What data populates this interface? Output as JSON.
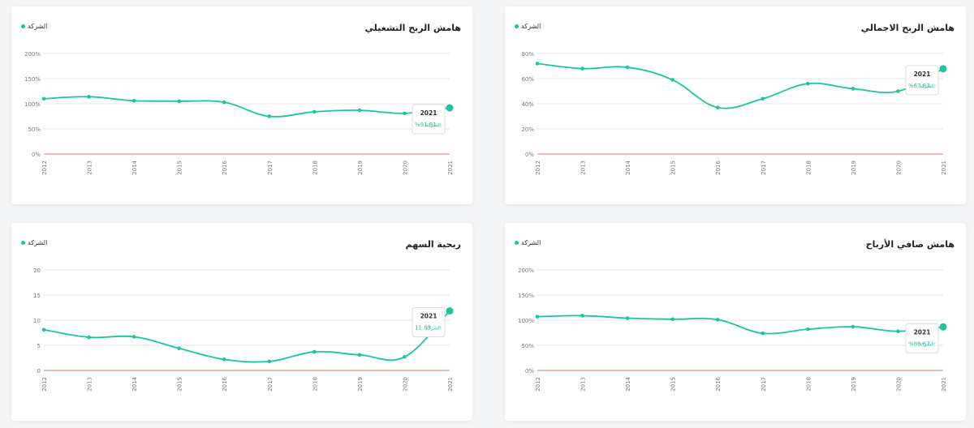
{
  "series_color": "#1bc5a0",
  "zero_line_color": "#e57373",
  "tooltip_series_label": "الشركة:",
  "chart_data": [
    {
      "id": "gross_margin",
      "type": "line",
      "title": "هامش الربح الاجمالي",
      "legend": "الشركة",
      "x": [
        "2012",
        "2013",
        "2014",
        "2015",
        "2016",
        "2017",
        "2018",
        "2019",
        "2020",
        "2021"
      ],
      "series": [
        {
          "name": "الشركة",
          "values": [
            72,
            68,
            69,
            59,
            37,
            44,
            56,
            52,
            50,
            67.83
          ]
        }
      ],
      "yticks": [
        0,
        20,
        40,
        60,
        80
      ],
      "ytick_labels": [
        "0%",
        "20%",
        "40%",
        "60%",
        "80%"
      ],
      "ylim": [
        0,
        80
      ],
      "tooltip": {
        "year": "2021",
        "value": "%67.83"
      }
    },
    {
      "id": "operating_margin",
      "type": "line",
      "title": "هامش الربح التشغيلي",
      "legend": "الشركة",
      "x": [
        "2012",
        "2013",
        "2014",
        "2015",
        "2016",
        "2017",
        "2018",
        "2019",
        "2020",
        "2021"
      ],
      "series": [
        {
          "name": "الشركة",
          "values": [
            110,
            114,
            106,
            105,
            103,
            75,
            84,
            87,
            81,
            91.91
          ]
        }
      ],
      "yticks": [
        0,
        50,
        100,
        150,
        200
      ],
      "ytick_labels": [
        "0%",
        "50%",
        "100%",
        "150%",
        "200%"
      ],
      "ylim": [
        0,
        200
      ],
      "tooltip": {
        "year": "2021",
        "value": "%91.91"
      }
    },
    {
      "id": "net_margin",
      "type": "line",
      "title": "هامش صافي الأرباح",
      "legend": "الشركة",
      "x": [
        "2012",
        "2013",
        "2014",
        "2015",
        "2016",
        "2017",
        "2018",
        "2019",
        "2020",
        "2021"
      ],
      "series": [
        {
          "name": "الشركة",
          "values": [
            107,
            109,
            104,
            102,
            101,
            74,
            82,
            87,
            78,
            86.67
          ]
        }
      ],
      "yticks": [
        0,
        50,
        100,
        150,
        200
      ],
      "ytick_labels": [
        "0%",
        "50%",
        "100%",
        "150%",
        "200%"
      ],
      "ylim": [
        0,
        200
      ],
      "tooltip": {
        "year": "2021",
        "value": "%86.67"
      }
    },
    {
      "id": "eps",
      "type": "line",
      "title": "ربحية السهم",
      "legend": "الشركة",
      "x": [
        "2012",
        "2013",
        "2014",
        "2015",
        "2016",
        "2017",
        "2018",
        "2019",
        "2020",
        "2021"
      ],
      "series": [
        {
          "name": "الشركة",
          "values": [
            8.1,
            6.6,
            6.7,
            4.4,
            2.2,
            1.8,
            3.7,
            3.1,
            2.7,
            11.85
          ]
        }
      ],
      "yticks": [
        0,
        5,
        10,
        15,
        20
      ],
      "ytick_labels": [
        "0",
        "5",
        "10",
        "15",
        "20"
      ],
      "ylim": [
        0,
        20
      ],
      "tooltip": {
        "year": "2021",
        "value": "11.85"
      }
    }
  ]
}
